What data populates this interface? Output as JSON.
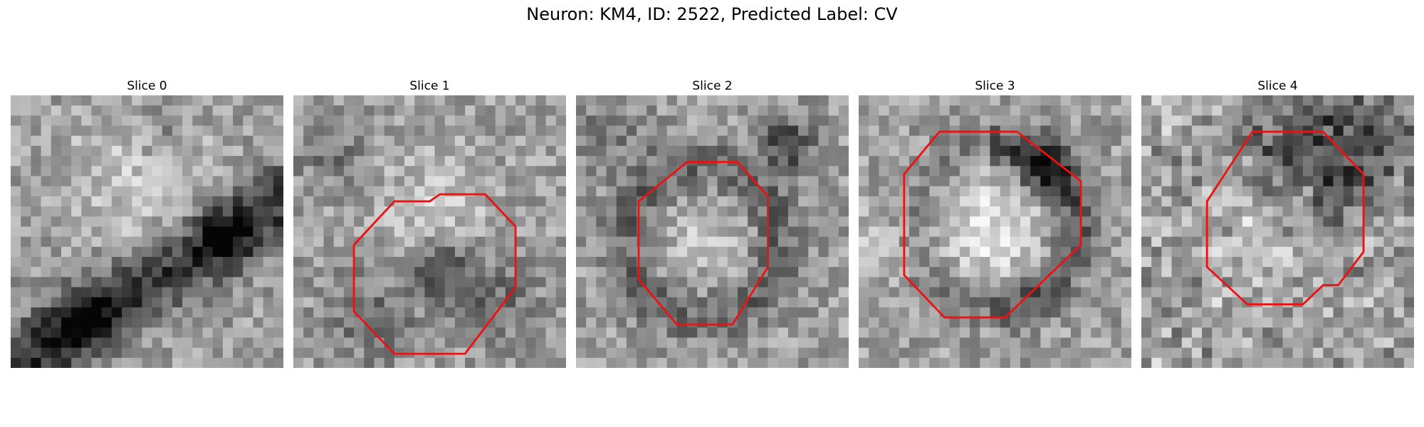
{
  "figure": {
    "title": "Neuron: KM4, ID: 2522, Predicted Label: CV",
    "colormap": "gray",
    "contour_color": "#ee1111"
  },
  "slices": [
    {
      "title": "Slice 0",
      "pattern": "diagonal-dark-band",
      "contour": []
    },
    {
      "title": "Slice 1",
      "pattern": "light-blob-dark-spot",
      "contour": [
        [
          13.5,
          10.5
        ],
        [
          14.5,
          9.8
        ],
        [
          19,
          9.8
        ],
        [
          22,
          13
        ],
        [
          22,
          19
        ],
        [
          17,
          25.6
        ],
        [
          10,
          25.6
        ],
        [
          6,
          21.4
        ],
        [
          6,
          14.8
        ],
        [
          10,
          10.5
        ]
      ]
    },
    {
      "title": "Slice 2",
      "pattern": "ring-bright-center",
      "contour": [
        [
          11,
          6.6
        ],
        [
          16,
          6.6
        ],
        [
          19,
          10
        ],
        [
          19,
          17
        ],
        [
          15.5,
          22.7
        ],
        [
          10,
          22.7
        ],
        [
          6.2,
          18.2
        ],
        [
          6.2,
          10.5
        ]
      ]
    },
    {
      "title": "Slice 3",
      "pattern": "bright-disk-dark-rim",
      "contour": [
        [
          8,
          3.6
        ],
        [
          15.7,
          3.6
        ],
        [
          22,
          8.5
        ],
        [
          22,
          14.8
        ],
        [
          14.5,
          22
        ],
        [
          8.5,
          22
        ],
        [
          4.5,
          17.8
        ],
        [
          4.5,
          7.8
        ]
      ]
    },
    {
      "title": "Slice 4",
      "pattern": "noisy-dark-top",
      "contour": [
        [
          11,
          3.6
        ],
        [
          18,
          3.6
        ],
        [
          22,
          7.8
        ],
        [
          22,
          15.5
        ],
        [
          19.5,
          18.8
        ],
        [
          18,
          18.8
        ],
        [
          16,
          20.7
        ],
        [
          10.5,
          20.7
        ],
        [
          6.5,
          17
        ],
        [
          6.5,
          10.5
        ]
      ]
    }
  ]
}
